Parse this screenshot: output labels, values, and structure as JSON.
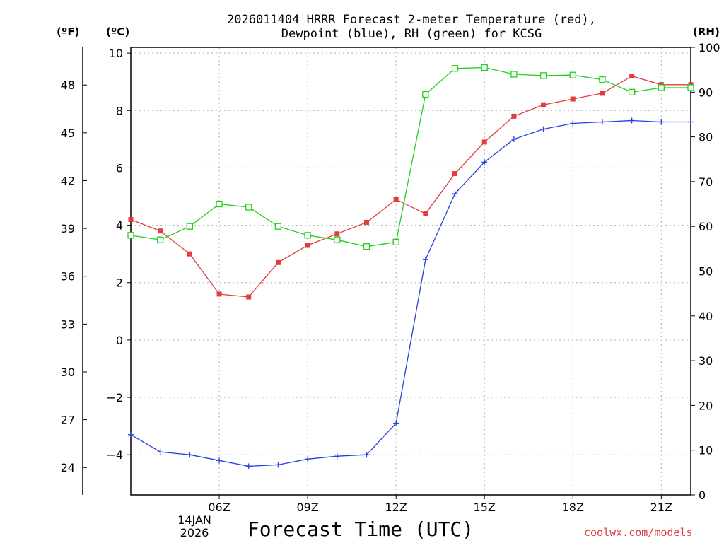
{
  "title": {
    "line1": "2026011404 HRRR Forecast 2-meter Temperature (red),",
    "line2": "Dewpoint (blue), RH (green) for KCSG"
  },
  "units": {
    "fahrenheit": "(ºF)",
    "celsius": "(ºC)",
    "rh": "(RH)"
  },
  "xlabel": "Forecast Time (UTC)",
  "date_label": {
    "day": "14JAN",
    "year": "2026"
  },
  "credit": "coolwx.com/models",
  "colors": {
    "temperature": "#e23c3c",
    "dewpoint": "#2540e0",
    "rh": "#1fd01f",
    "grid": "#b0b0b0"
  },
  "chart_data": {
    "type": "line",
    "title": "2026011404 HRRR Forecast 2-meter Temperature (red), Dewpoint (blue), RH (green) for KCSG",
    "xlabel": "Forecast Time (UTC)",
    "x_hours": [
      3,
      4,
      5,
      6,
      7,
      8,
      9,
      10,
      11,
      12,
      13,
      14,
      15,
      16,
      17,
      18,
      19,
      20,
      21,
      22
    ],
    "xlim": [
      3,
      22
    ],
    "x_ticks": [
      {
        "hour": 6,
        "label": "06Z"
      },
      {
        "hour": 9,
        "label": "09Z"
      },
      {
        "hour": 12,
        "label": "12Z"
      },
      {
        "hour": 15,
        "label": "15Z"
      },
      {
        "hour": 18,
        "label": "18Z"
      },
      {
        "hour": 21,
        "label": "21Z"
      }
    ],
    "celsius_axis": {
      "ylim": [
        -5.4,
        10.2
      ],
      "ticks": [
        -4,
        -2,
        0,
        2,
        4,
        6,
        8,
        10
      ]
    },
    "fahrenheit_axis": {
      "ticks": [
        24,
        27,
        30,
        33,
        36,
        39,
        42,
        45,
        48
      ]
    },
    "rh_axis": {
      "ylim": [
        0,
        100
      ],
      "ticks": [
        0,
        10,
        20,
        30,
        40,
        50,
        60,
        70,
        80,
        90,
        100
      ]
    },
    "series": [
      {
        "name": "Temperature",
        "unit": "C",
        "axis": "celsius",
        "marker": "filled-square",
        "values": [
          4.2,
          3.8,
          3.0,
          1.6,
          1.5,
          2.7,
          3.3,
          3.7,
          4.1,
          4.9,
          4.4,
          5.8,
          6.9,
          7.8,
          8.2,
          8.4,
          8.6,
          9.2,
          8.9,
          8.9
        ]
      },
      {
        "name": "Dewpoint",
        "unit": "C",
        "axis": "celsius",
        "marker": "plus",
        "values": [
          -3.3,
          -3.9,
          -4.0,
          -4.2,
          -4.4,
          -4.35,
          -4.15,
          -4.05,
          -4.0,
          -2.9,
          2.8,
          5.1,
          6.2,
          7.0,
          7.35,
          7.55,
          7.6,
          7.65,
          7.6,
          7.6
        ]
      },
      {
        "name": "RH",
        "unit": "%",
        "axis": "rh",
        "marker": "open-square",
        "values": [
          58,
          57,
          60,
          65,
          64.3,
          60,
          58,
          57,
          55.5,
          56.5,
          89.5,
          95.3,
          95.5,
          94,
          93.7,
          93.8,
          92.8,
          90,
          91,
          91
        ]
      }
    ]
  }
}
